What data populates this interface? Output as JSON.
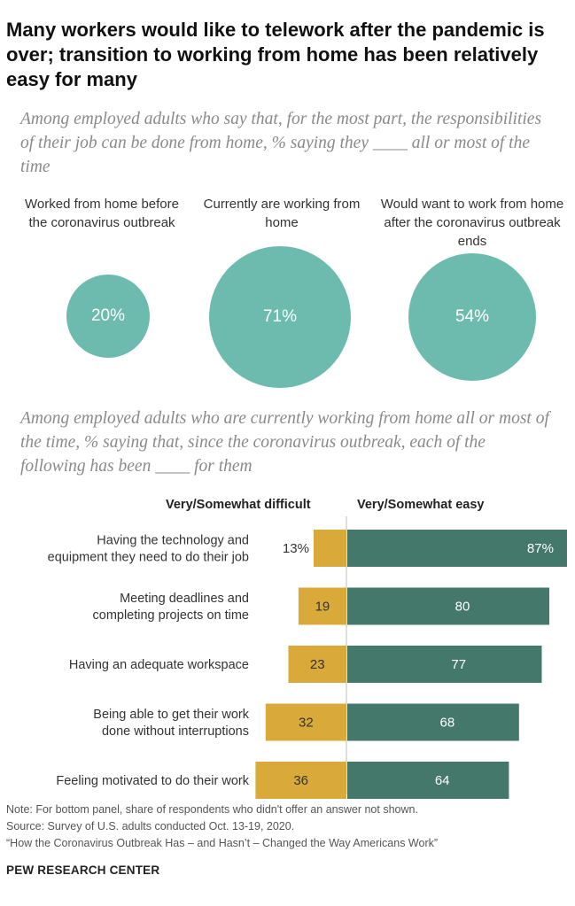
{
  "title": "Many workers would like to telework after the pandemic is over; transition to working from home has been relatively easy for many",
  "top_panel": {
    "subtitle": "Among employed adults who say that, for the most part, the responsibilities of their job can be done from home, % saying they ____ all or most of the time",
    "items": [
      {
        "label": "Worked from home before the coronavirus outbreak",
        "value_label": "20%"
      },
      {
        "label": "Currently are working from home",
        "value_label": "71%"
      },
      {
        "label": "Would want to work from home after the coronavirus outbreak ends",
        "value_label": "54%"
      }
    ]
  },
  "bottom_panel": {
    "subtitle": "Among employed adults who are currently working from home all or most of the time, % saying that, since the coronavirus outbreak, each of the following has been ____ for them",
    "difficult_header": "Very/Somewhat difficult",
    "easy_header": "Very/Somewhat easy"
  },
  "chart_data": [
    {
      "type": "bubble",
      "categories": [
        "Worked from home before the coronavirus outbreak",
        "Currently are working from home",
        "Would want to work from home after the coronavirus outbreak ends"
      ],
      "values": [
        20,
        71,
        54
      ],
      "unit": "%",
      "color": "#6dbbaf"
    },
    {
      "type": "bar",
      "orientation": "horizontal-diverging",
      "categories": [
        "Having the technology and equipment they need to do their job",
        "Meeting deadlines and completing projects on time",
        "Having an adequate workspace",
        "Being able to get their work done without interruptions",
        "Feeling motivated to do their work"
      ],
      "series": [
        {
          "name": "Very/Somewhat difficult",
          "values": [
            13,
            19,
            23,
            32,
            36
          ],
          "labels": [
            "13%",
            "19",
            "23",
            "32",
            "36"
          ],
          "color": "#d9a93a"
        },
        {
          "name": "Very/Somewhat easy",
          "values": [
            87,
            80,
            77,
            68,
            64
          ],
          "labels": [
            "87%",
            "80",
            "77",
            "68",
            "64"
          ],
          "color": "#44786a"
        }
      ],
      "divider_color": "#bdbdbd"
    }
  ],
  "footer": {
    "note": "Note: For bottom panel, share of respondents who didn't offer an answer not shown.",
    "source": "Source: Survey of U.S. adults conducted Oct. 13-19, 2020.",
    "report": "“How the Coronavirus Outbreak Has – and Hasn’t – Changed the Way Americans Work”",
    "brand": "PEW RESEARCH CENTER"
  }
}
